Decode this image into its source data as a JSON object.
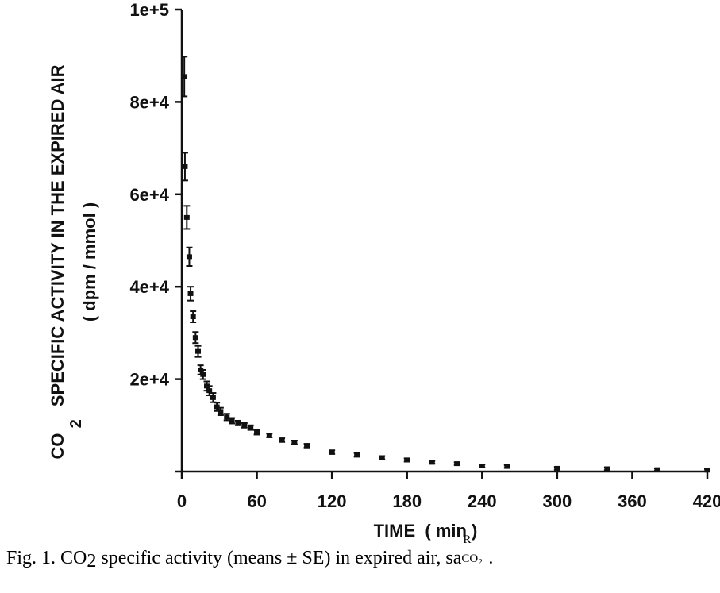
{
  "chart_data": {
    "type": "scatter",
    "title": "",
    "xlabel": "TIME  ( min )",
    "ylabel": {
      "line1_prefix": "CO",
      "line1_subscript": "2",
      "line1_rest": "SPECIFIC ACTIVITY IN THE EXPIRED AIR",
      "line2": "( dpm / mmol )"
    },
    "xlim": [
      0,
      420
    ],
    "ylim": [
      0,
      100000
    ],
    "xticks": [
      0,
      60,
      120,
      180,
      240,
      300,
      360,
      420
    ],
    "xtick_labels": [
      "0",
      "60",
      "120",
      "180",
      "240",
      "300",
      "360",
      "420"
    ],
    "yticks": [
      0,
      20000,
      40000,
      60000,
      80000,
      100000
    ],
    "ytick_labels": [
      "",
      "2e+4",
      "4e+4",
      "6e+4",
      "8e+4",
      "1e+5"
    ],
    "grid": false,
    "series": [
      {
        "points": [
          {
            "x": 2,
            "y": 85500,
            "err": 4300
          },
          {
            "x": 2.5,
            "y": 66000,
            "err": 3000
          },
          {
            "x": 4,
            "y": 55000,
            "err": 2500
          },
          {
            "x": 6,
            "y": 46500,
            "err": 2000
          },
          {
            "x": 7,
            "y": 38500,
            "err": 1500
          },
          {
            "x": 9,
            "y": 33500,
            "err": 1200
          },
          {
            "x": 11,
            "y": 29000,
            "err": 1200
          },
          {
            "x": 13,
            "y": 26000,
            "err": 1200
          },
          {
            "x": 15,
            "y": 22000,
            "err": 1000
          },
          {
            "x": 17,
            "y": 21000,
            "err": 1000
          },
          {
            "x": 20,
            "y": 18500,
            "err": 1000
          },
          {
            "x": 22,
            "y": 17500,
            "err": 1000
          },
          {
            "x": 25,
            "y": 16000,
            "err": 1000
          },
          {
            "x": 28,
            "y": 14000,
            "err": 900
          },
          {
            "x": 31,
            "y": 13000,
            "err": 800
          },
          {
            "x": 36,
            "y": 11800,
            "err": 700
          },
          {
            "x": 40,
            "y": 11000,
            "err": 600
          },
          {
            "x": 45,
            "y": 10500,
            "err": 500
          },
          {
            "x": 50,
            "y": 10000,
            "err": 500
          },
          {
            "x": 55,
            "y": 9500,
            "err": 500
          },
          {
            "x": 60,
            "y": 8500,
            "err": 500
          },
          {
            "x": 70,
            "y": 7800,
            "err": 400
          },
          {
            "x": 80,
            "y": 6800,
            "err": 400
          },
          {
            "x": 90,
            "y": 6300,
            "err": 400
          },
          {
            "x": 100,
            "y": 5600,
            "err": 400
          },
          {
            "x": 120,
            "y": 4200,
            "err": 400
          },
          {
            "x": 140,
            "y": 3600,
            "err": 400
          },
          {
            "x": 160,
            "y": 3000,
            "err": 350
          },
          {
            "x": 180,
            "y": 2500,
            "err": 350
          },
          {
            "x": 200,
            "y": 2000,
            "err": 300
          },
          {
            "x": 220,
            "y": 1700,
            "err": 300
          },
          {
            "x": 240,
            "y": 1200,
            "err": 300
          },
          {
            "x": 260,
            "y": 1100,
            "err": 300
          },
          {
            "x": 300,
            "y": 700,
            "err": 300
          },
          {
            "x": 340,
            "y": 600,
            "err": 300
          },
          {
            "x": 380,
            "y": 400,
            "err": 250
          },
          {
            "x": 420,
            "y": 300,
            "err": 250
          }
        ]
      }
    ]
  },
  "caption": {
    "prefix": "Fig. 1.  CO",
    "prefix_sub": "2",
    "middle": " specific activity (means ± SE) in expired air, sa",
    "sym_sup": "R",
    "sym_sub": "CO",
    "sym_sub_sub": "2",
    "suffix": "."
  }
}
